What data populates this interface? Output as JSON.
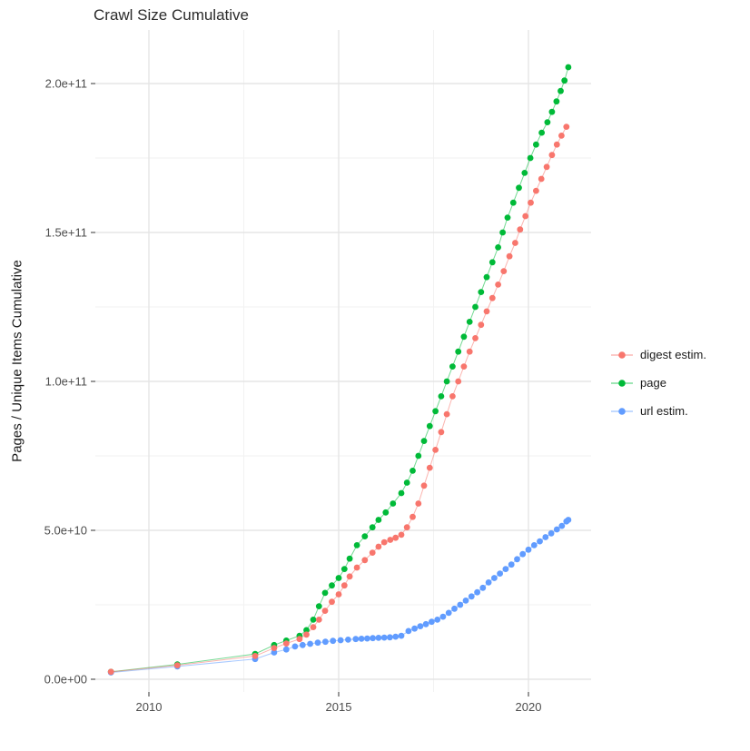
{
  "title": "Crawl Size Cumulative",
  "y_axis_label": "Pages / Unique Items Cumulative",
  "axes": {
    "y": {
      "ticks": [
        {
          "value": 0,
          "label": "0.0e+00"
        },
        {
          "value": 50,
          "label": "5.0e+10"
        },
        {
          "value": 100,
          "label": "1.0e+11"
        },
        {
          "value": 150,
          "label": "1.5e+11"
        },
        {
          "value": 200,
          "label": "2.0e+11"
        }
      ],
      "minor_values": [
        25,
        75,
        125,
        175
      ]
    },
    "x": {
      "ticks": [
        {
          "value": 2010,
          "label": "2010"
        },
        {
          "value": 2015,
          "label": "2015"
        },
        {
          "value": 2020,
          "label": "2020"
        }
      ],
      "minor_values": [
        2012.5,
        2017.5
      ]
    }
  },
  "legend": {
    "items": [
      {
        "label": "digest estim.",
        "color": "#F8766D"
      },
      {
        "label": "page",
        "color": "#00BA38"
      },
      {
        "label": "url estim.",
        "color": "#619CFF"
      }
    ]
  },
  "style": {
    "grid_major": "#e5e5e5",
    "grid_minor": "#f2f2f2",
    "tick_color": "#333333",
    "tick_label_color": "#4d4d4d",
    "background": "#ffffff"
  },
  "chart_data": {
    "type": "scatter",
    "title": "Crawl Size Cumulative",
    "xlabel": "",
    "ylabel": "Pages / Unique Items Cumulative",
    "x_range": [
      2008.6,
      2021.8
    ],
    "y_range_billions": [
      0,
      218
    ],
    "y_tick_labels": [
      "0.0e+00",
      "5.0e+10",
      "1.0e+11",
      "1.5e+11",
      "2.0e+11"
    ],
    "x_tick_labels": [
      "2010",
      "2015",
      "2020"
    ],
    "legend_position": "right",
    "grid": true,
    "units": "series point format [year, value in billions (1e9) of pages / unique items]",
    "series": [
      {
        "name": "digest estim.",
        "color": "#F8766D",
        "points": [
          [
            2009.0,
            2.5
          ],
          [
            2010.75,
            4.7
          ],
          [
            2012.8,
            7.8
          ],
          [
            2013.3,
            10.5
          ],
          [
            2013.62,
            12
          ],
          [
            2013.97,
            13.5
          ],
          [
            2014.15,
            15
          ],
          [
            2014.33,
            17.5
          ],
          [
            2014.48,
            20
          ],
          [
            2014.64,
            23
          ],
          [
            2014.82,
            26
          ],
          [
            2015.0,
            28.5
          ],
          [
            2015.15,
            31.5
          ],
          [
            2015.29,
            34.5
          ],
          [
            2015.48,
            37.5
          ],
          [
            2015.69,
            40
          ],
          [
            2015.89,
            42.5
          ],
          [
            2016.05,
            44.5
          ],
          [
            2016.2,
            46
          ],
          [
            2016.36,
            46.8
          ],
          [
            2016.5,
            47.5
          ],
          [
            2016.65,
            48.5
          ],
          [
            2016.8,
            51
          ],
          [
            2016.95,
            54.5
          ],
          [
            2017.1,
            59
          ],
          [
            2017.25,
            65
          ],
          [
            2017.4,
            71
          ],
          [
            2017.55,
            77
          ],
          [
            2017.7,
            83
          ],
          [
            2017.85,
            89
          ],
          [
            2018.0,
            95
          ],
          [
            2018.15,
            100
          ],
          [
            2018.3,
            105
          ],
          [
            2018.45,
            110
          ],
          [
            2018.6,
            114.5
          ],
          [
            2018.75,
            119
          ],
          [
            2018.9,
            123.5
          ],
          [
            2019.05,
            128
          ],
          [
            2019.2,
            132.5
          ],
          [
            2019.35,
            137
          ],
          [
            2019.5,
            142
          ],
          [
            2019.65,
            146.5
          ],
          [
            2019.78,
            151
          ],
          [
            2019.92,
            155.5
          ],
          [
            2020.06,
            160
          ],
          [
            2020.2,
            164
          ],
          [
            2020.34,
            168
          ],
          [
            2020.48,
            172
          ],
          [
            2020.62,
            176
          ],
          [
            2020.75,
            179.5
          ],
          [
            2020.87,
            182.5
          ],
          [
            2021.0,
            185.5
          ]
        ]
      },
      {
        "name": "page",
        "color": "#00BA38",
        "points": [
          [
            2009.0,
            2.5
          ],
          [
            2010.75,
            5
          ],
          [
            2012.8,
            8.5
          ],
          [
            2013.3,
            11.5
          ],
          [
            2013.62,
            13
          ],
          [
            2013.97,
            14.6
          ],
          [
            2014.15,
            16.5
          ],
          [
            2014.33,
            20
          ],
          [
            2014.48,
            24.5
          ],
          [
            2014.64,
            29
          ],
          [
            2014.82,
            31.5
          ],
          [
            2015.0,
            34
          ],
          [
            2015.15,
            37
          ],
          [
            2015.29,
            40.5
          ],
          [
            2015.48,
            45
          ],
          [
            2015.69,
            48
          ],
          [
            2015.89,
            51
          ],
          [
            2016.05,
            53.5
          ],
          [
            2016.24,
            56
          ],
          [
            2016.43,
            59
          ],
          [
            2016.65,
            62.5
          ],
          [
            2016.8,
            66
          ],
          [
            2016.95,
            70
          ],
          [
            2017.1,
            75
          ],
          [
            2017.25,
            80
          ],
          [
            2017.4,
            85
          ],
          [
            2017.55,
            90
          ],
          [
            2017.7,
            95
          ],
          [
            2017.85,
            100
          ],
          [
            2018.0,
            105
          ],
          [
            2018.15,
            110
          ],
          [
            2018.3,
            115
          ],
          [
            2018.45,
            120
          ],
          [
            2018.6,
            125
          ],
          [
            2018.75,
            130
          ],
          [
            2018.9,
            135
          ],
          [
            2019.05,
            140
          ],
          [
            2019.2,
            145
          ],
          [
            2019.32,
            150
          ],
          [
            2019.45,
            155
          ],
          [
            2019.6,
            160
          ],
          [
            2019.75,
            165
          ],
          [
            2019.9,
            170
          ],
          [
            2020.05,
            175
          ],
          [
            2020.2,
            179.5
          ],
          [
            2020.35,
            183.5
          ],
          [
            2020.5,
            187
          ],
          [
            2020.62,
            190.5
          ],
          [
            2020.74,
            194
          ],
          [
            2020.85,
            197.5
          ],
          [
            2020.95,
            201
          ],
          [
            2021.05,
            205.5
          ]
        ]
      },
      {
        "name": "url estim.",
        "color": "#619CFF",
        "points": [
          [
            2009.0,
            2.3
          ],
          [
            2010.75,
            4.3
          ],
          [
            2012.8,
            6.8
          ],
          [
            2013.3,
            9
          ],
          [
            2013.62,
            10
          ],
          [
            2013.85,
            11
          ],
          [
            2014.05,
            11.5
          ],
          [
            2014.25,
            11.9
          ],
          [
            2014.45,
            12.3
          ],
          [
            2014.65,
            12.6
          ],
          [
            2014.85,
            12.9
          ],
          [
            2015.05,
            13.1
          ],
          [
            2015.25,
            13.3
          ],
          [
            2015.45,
            13.5
          ],
          [
            2015.6,
            13.6
          ],
          [
            2015.75,
            13.7
          ],
          [
            2015.9,
            13.8
          ],
          [
            2016.05,
            13.9
          ],
          [
            2016.2,
            14.0
          ],
          [
            2016.35,
            14.1
          ],
          [
            2016.5,
            14.3
          ],
          [
            2016.65,
            14.6
          ],
          [
            2016.84,
            16.2
          ],
          [
            2017.0,
            17
          ],
          [
            2017.15,
            17.8
          ],
          [
            2017.3,
            18.5
          ],
          [
            2017.45,
            19.3
          ],
          [
            2017.6,
            20
          ],
          [
            2017.75,
            21
          ],
          [
            2017.9,
            22.3
          ],
          [
            2018.05,
            23.7
          ],
          [
            2018.2,
            25
          ],
          [
            2018.35,
            26.4
          ],
          [
            2018.5,
            27.8
          ],
          [
            2018.65,
            29.2
          ],
          [
            2018.8,
            30.7
          ],
          [
            2018.95,
            32.5
          ],
          [
            2019.1,
            34
          ],
          [
            2019.25,
            35.5
          ],
          [
            2019.4,
            37
          ],
          [
            2019.55,
            38.5
          ],
          [
            2019.7,
            40.3
          ],
          [
            2019.85,
            42
          ],
          [
            2020.0,
            43.5
          ],
          [
            2020.15,
            45
          ],
          [
            2020.3,
            46.3
          ],
          [
            2020.45,
            47.7
          ],
          [
            2020.6,
            49
          ],
          [
            2020.75,
            50.3
          ],
          [
            2020.88,
            51.5
          ],
          [
            2021.0,
            53
          ],
          [
            2021.05,
            53.5
          ]
        ]
      }
    ]
  }
}
